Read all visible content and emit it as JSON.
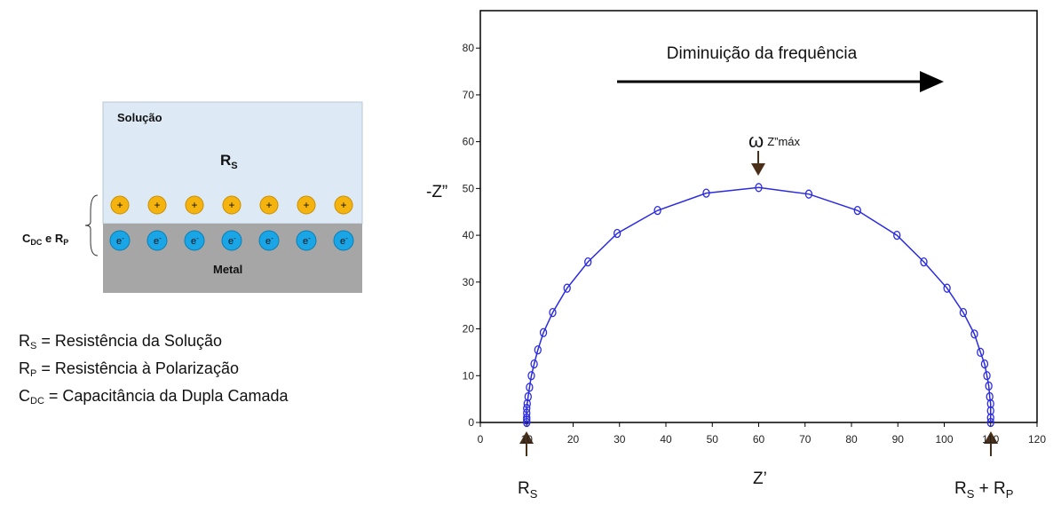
{
  "diagram": {
    "solution_label": "Solução",
    "rs_label": {
      "main": "R",
      "sub": "S"
    },
    "plus_sign": "+",
    "electron": {
      "main": "e",
      "sup": "-"
    },
    "metal_label": "Metal",
    "side_label": {
      "c": "C",
      "c_sub": "DC",
      "mid": " e R",
      "r_sub": "P"
    },
    "legend": [
      {
        "symbol": "R",
        "sub": "S",
        "text": " = Resistência da Solução"
      },
      {
        "symbol": "R",
        "sub": "P",
        "text": " = Resistência à Polarização"
      },
      {
        "symbol": "C",
        "sub": "DC",
        "text": " = Capacitância da Dupla Camada"
      }
    ]
  },
  "chart_data": {
    "type": "line",
    "markers": true,
    "color": "#2b2be0",
    "x": [
      10,
      10,
      10,
      10,
      10,
      10.1,
      10.3,
      10.6,
      11,
      11.6,
      12.4,
      13.6,
      15.6,
      18.7,
      23.2,
      29.5,
      38.2,
      48.7,
      60,
      70.8,
      81.3,
      89.8,
      95.6,
      100.6,
      104.1,
      106.5,
      107.8,
      108.7,
      109.2,
      109.6,
      109.8,
      110,
      110,
      110,
      110
    ],
    "values": [
      0,
      0.5,
      1,
      2,
      3,
      4,
      5.5,
      7.5,
      10,
      12.5,
      15.5,
      19.2,
      23.5,
      28.7,
      34.3,
      40.4,
      45.3,
      49,
      50.2,
      48.8,
      45.3,
      40,
      34.3,
      28.7,
      23.5,
      18.9,
      15,
      12.5,
      10,
      7.8,
      5.5,
      4,
      2.5,
      1,
      0
    ],
    "xlim": [
      0,
      120
    ],
    "ylim": [
      0,
      88
    ],
    "xticks": [
      0,
      10,
      20,
      30,
      40,
      50,
      60,
      70,
      80,
      90,
      100,
      110,
      120
    ],
    "yticks": [
      0,
      10,
      20,
      30,
      40,
      50,
      60,
      70,
      80
    ],
    "x_label": "Z’",
    "y_label": "-Z”",
    "arrow_text": "Diminuição da frequência",
    "peak_label": {
      "main": "ω",
      "sub": "Z”máx"
    },
    "rs_marker": {
      "main": "R",
      "sub": "S"
    },
    "rsrp_marker": {
      "r1": "R",
      "s1": "S",
      "mid": " + R",
      "s2": "P"
    }
  }
}
